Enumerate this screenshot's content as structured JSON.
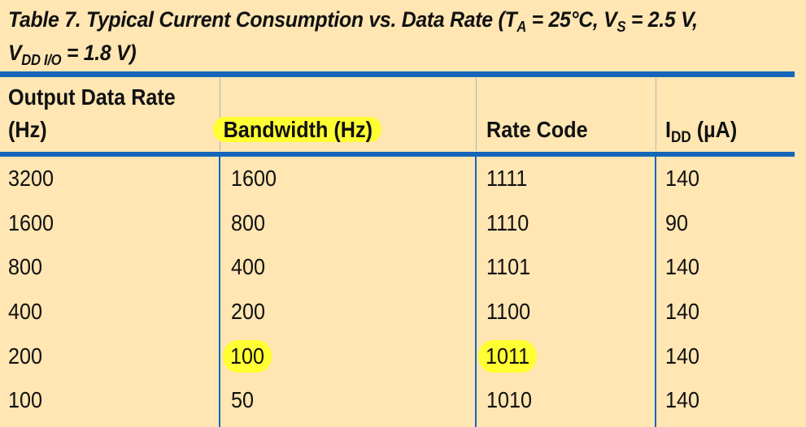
{
  "title": {
    "line1_prefix": "Table 7. Typical Current Consumption vs. Data Rate (T",
    "line1_sub1": "A",
    "line1_mid": " = 25°C, V",
    "line1_sub2": "S",
    "line1_suffix": " = 2.5 V,",
    "line2_prefix": "V",
    "line2_sub": "DD I/O",
    "line2_suffix": " = 1.8 V)"
  },
  "headers": {
    "col1_line1": "Output Data Rate",
    "col1_line2": "(Hz)",
    "col2": "Bandwidth (Hz)",
    "col3": "Rate Code",
    "col4_prefix": "I",
    "col4_sub": "DD",
    "col4_suffix": " (µA)"
  },
  "rows": [
    {
      "odr": "3200",
      "bandwidth": "1600",
      "rate_code": "1111",
      "idd": "140"
    },
    {
      "odr": "1600",
      "bandwidth": "800",
      "rate_code": "1110",
      "idd": "90"
    },
    {
      "odr": "800",
      "bandwidth": "400",
      "rate_code": "1101",
      "idd": "140"
    },
    {
      "odr": "400",
      "bandwidth": "200",
      "rate_code": "1100",
      "idd": "140"
    },
    {
      "odr": "200",
      "bandwidth": "100",
      "rate_code": "1011",
      "idd": "140"
    },
    {
      "odr": "100",
      "bandwidth": "50",
      "rate_code": "1010",
      "idd": "140"
    }
  ],
  "highlight_color": "#ffff33",
  "rule_color": "#1565b8",
  "background_color": "#ffe6b3"
}
